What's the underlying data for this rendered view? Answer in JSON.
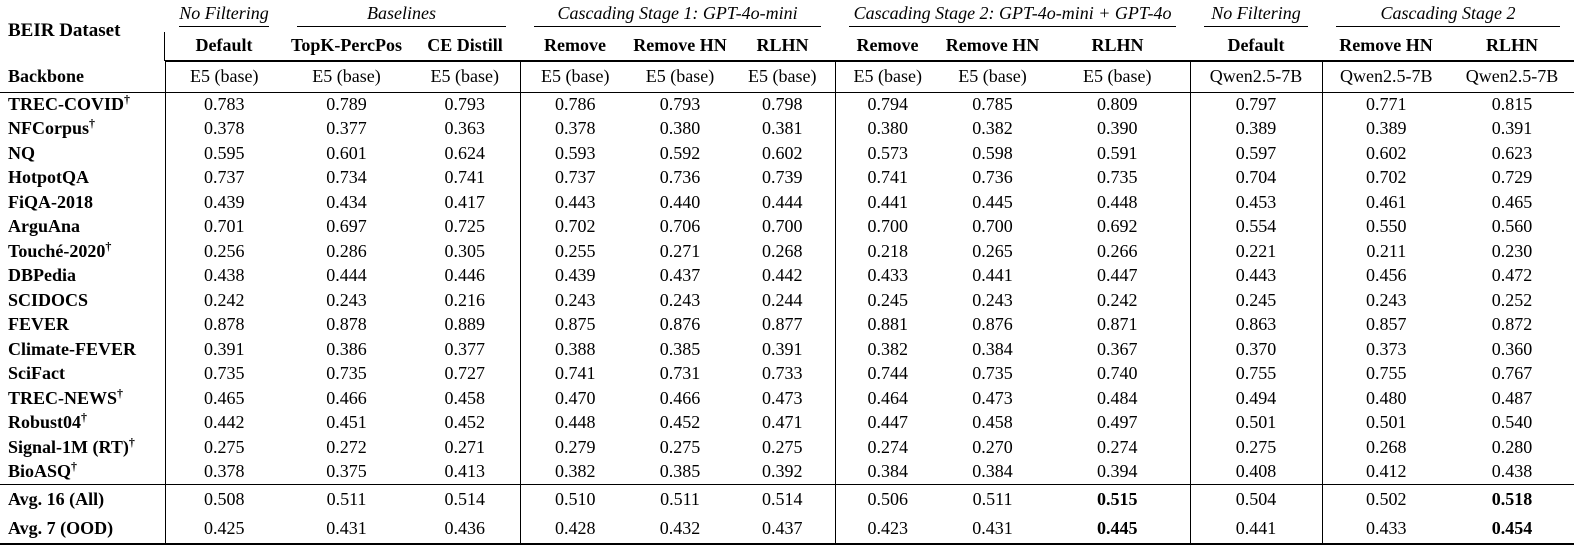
{
  "table": {
    "corner_label": "BEIR Dataset",
    "backbone_label": "Backbone",
    "dagger_symbol": "†",
    "text_color": "#000000",
    "background": "#ffffff",
    "groups": [
      {
        "label": "No Filtering",
        "span": 1
      },
      {
        "label": "Baselines",
        "span": 2
      },
      {
        "label": "Cascading Stage 1: GPT-4o-mini",
        "span": 3
      },
      {
        "label": "Cascading Stage 2: GPT-4o-mini + GPT-4o",
        "span": 3
      },
      {
        "label": "No Filtering",
        "span": 1
      },
      {
        "label": "Cascading Stage 2",
        "span": 2
      }
    ],
    "columns": [
      {
        "header": "Default",
        "backbone": "E5 (base)"
      },
      {
        "header": "TopK-PercPos",
        "backbone": "E5 (base)"
      },
      {
        "header": "CE Distill",
        "backbone": "E5 (base)"
      },
      {
        "header": "Remove",
        "backbone": "E5 (base)"
      },
      {
        "header": "Remove HN",
        "backbone": "E5 (base)"
      },
      {
        "header": "RLHN",
        "backbone": "E5 (base)"
      },
      {
        "header": "Remove",
        "backbone": "E5 (base)"
      },
      {
        "header": "Remove HN",
        "backbone": "E5 (base)"
      },
      {
        "header": "RLHN",
        "backbone": "E5 (base)"
      },
      {
        "header": "Default",
        "backbone": "Qwen2.5-7B"
      },
      {
        "header": "Remove HN",
        "backbone": "Qwen2.5-7B"
      },
      {
        "header": "RLHN",
        "backbone": "Qwen2.5-7B"
      }
    ],
    "rows": [
      {
        "name": "TREC-COVID",
        "dagger": true,
        "values": [
          "0.783",
          "0.789",
          "0.793",
          "0.786",
          "0.793",
          "0.798",
          "0.794",
          "0.785",
          "0.809",
          "0.797",
          "0.771",
          "0.815"
        ]
      },
      {
        "name": "NFCorpus",
        "dagger": true,
        "values": [
          "0.378",
          "0.377",
          "0.363",
          "0.378",
          "0.380",
          "0.381",
          "0.380",
          "0.382",
          "0.390",
          "0.389",
          "0.389",
          "0.391"
        ]
      },
      {
        "name": "NQ",
        "dagger": false,
        "values": [
          "0.595",
          "0.601",
          "0.624",
          "0.593",
          "0.592",
          "0.602",
          "0.573",
          "0.598",
          "0.591",
          "0.597",
          "0.602",
          "0.623"
        ]
      },
      {
        "name": "HotpotQA",
        "dagger": false,
        "values": [
          "0.737",
          "0.734",
          "0.741",
          "0.737",
          "0.736",
          "0.739",
          "0.741",
          "0.736",
          "0.735",
          "0.704",
          "0.702",
          "0.729"
        ]
      },
      {
        "name": "FiQA-2018",
        "dagger": false,
        "values": [
          "0.439",
          "0.434",
          "0.417",
          "0.443",
          "0.440",
          "0.444",
          "0.441",
          "0.445",
          "0.448",
          "0.453",
          "0.461",
          "0.465"
        ]
      },
      {
        "name": "ArguAna",
        "dagger": false,
        "values": [
          "0.701",
          "0.697",
          "0.725",
          "0.702",
          "0.706",
          "0.700",
          "0.700",
          "0.700",
          "0.692",
          "0.554",
          "0.550",
          "0.560"
        ]
      },
      {
        "name": "Touché-2020",
        "dagger": true,
        "values": [
          "0.256",
          "0.286",
          "0.305",
          "0.255",
          "0.271",
          "0.268",
          "0.218",
          "0.265",
          "0.266",
          "0.221",
          "0.211",
          "0.230"
        ]
      },
      {
        "name": "DBPedia",
        "dagger": false,
        "values": [
          "0.438",
          "0.444",
          "0.446",
          "0.439",
          "0.437",
          "0.442",
          "0.433",
          "0.441",
          "0.447",
          "0.443",
          "0.456",
          "0.472"
        ]
      },
      {
        "name": "SCIDOCS",
        "dagger": false,
        "values": [
          "0.242",
          "0.243",
          "0.216",
          "0.243",
          "0.243",
          "0.244",
          "0.245",
          "0.243",
          "0.242",
          "0.245",
          "0.243",
          "0.252"
        ]
      },
      {
        "name": "FEVER",
        "dagger": false,
        "values": [
          "0.878",
          "0.878",
          "0.889",
          "0.875",
          "0.876",
          "0.877",
          "0.881",
          "0.876",
          "0.871",
          "0.863",
          "0.857",
          "0.872"
        ]
      },
      {
        "name": "Climate-FEVER",
        "dagger": false,
        "values": [
          "0.391",
          "0.386",
          "0.377",
          "0.388",
          "0.385",
          "0.391",
          "0.382",
          "0.384",
          "0.367",
          "0.370",
          "0.373",
          "0.360"
        ]
      },
      {
        "name": "SciFact",
        "dagger": false,
        "values": [
          "0.735",
          "0.735",
          "0.727",
          "0.741",
          "0.731",
          "0.733",
          "0.744",
          "0.735",
          "0.740",
          "0.755",
          "0.755",
          "0.767"
        ]
      },
      {
        "name": "TREC-NEWS",
        "dagger": true,
        "values": [
          "0.465",
          "0.466",
          "0.458",
          "0.470",
          "0.466",
          "0.473",
          "0.464",
          "0.473",
          "0.484",
          "0.494",
          "0.480",
          "0.487"
        ]
      },
      {
        "name": "Robust04",
        "dagger": true,
        "values": [
          "0.442",
          "0.451",
          "0.452",
          "0.448",
          "0.452",
          "0.471",
          "0.447",
          "0.458",
          "0.497",
          "0.501",
          "0.501",
          "0.540"
        ]
      },
      {
        "name": "Signal-1M (RT)",
        "dagger": true,
        "values": [
          "0.275",
          "0.272",
          "0.271",
          "0.279",
          "0.275",
          "0.275",
          "0.274",
          "0.270",
          "0.274",
          "0.275",
          "0.268",
          "0.280"
        ]
      },
      {
        "name": "BioASQ",
        "dagger": true,
        "values": [
          "0.378",
          "0.375",
          "0.413",
          "0.382",
          "0.385",
          "0.392",
          "0.384",
          "0.384",
          "0.394",
          "0.408",
          "0.412",
          "0.438"
        ]
      }
    ],
    "summary_rows": [
      {
        "name": "Avg. 16 (All)",
        "bold_cols": [
          8,
          11
        ],
        "values": [
          "0.508",
          "0.511",
          "0.514",
          "0.510",
          "0.511",
          "0.514",
          "0.506",
          "0.511",
          "0.515",
          "0.504",
          "0.502",
          "0.518"
        ]
      },
      {
        "name": "Avg. 7 (OOD)",
        "bold_cols": [
          8,
          11
        ],
        "values": [
          "0.425",
          "0.431",
          "0.436",
          "0.428",
          "0.432",
          "0.437",
          "0.423",
          "0.431",
          "0.445",
          "0.441",
          "0.433",
          "0.454"
        ]
      }
    ]
  }
}
